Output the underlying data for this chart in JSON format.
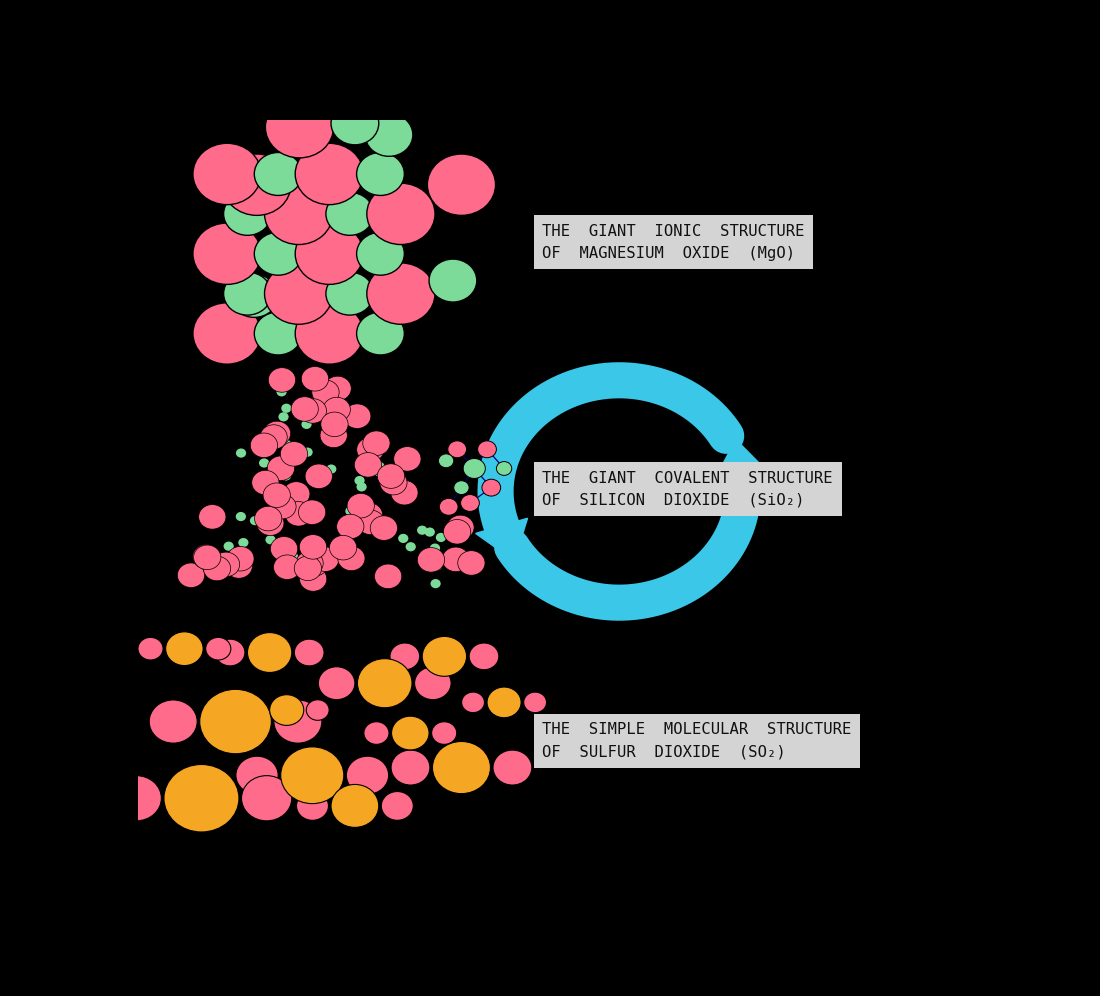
{
  "background_color": "#000000",
  "label_bg_color": "#d4d4d4",
  "pink_color": "#FF6B8A",
  "green_color": "#7DDB9A",
  "orange_color": "#F5A623",
  "blue_color": "#3BC8E8",
  "label1_line1": "THE  GIANT  IONIC  STRUCTURE",
  "label1_line2": "OF  MAGNESIUM  OXIDE  (MgO)",
  "label2_line1": "THE  GIANT  COVALENT  STRUCTURE",
  "label2_line2": "OF  SILICON  DIOXIDE  (SiO₂)",
  "label3_line1": "THE  SIMPLE  MOLECULAR  STRUCTURE",
  "label3_line2": "OF  SULFUR  DIOXIDE  (SO₂)"
}
